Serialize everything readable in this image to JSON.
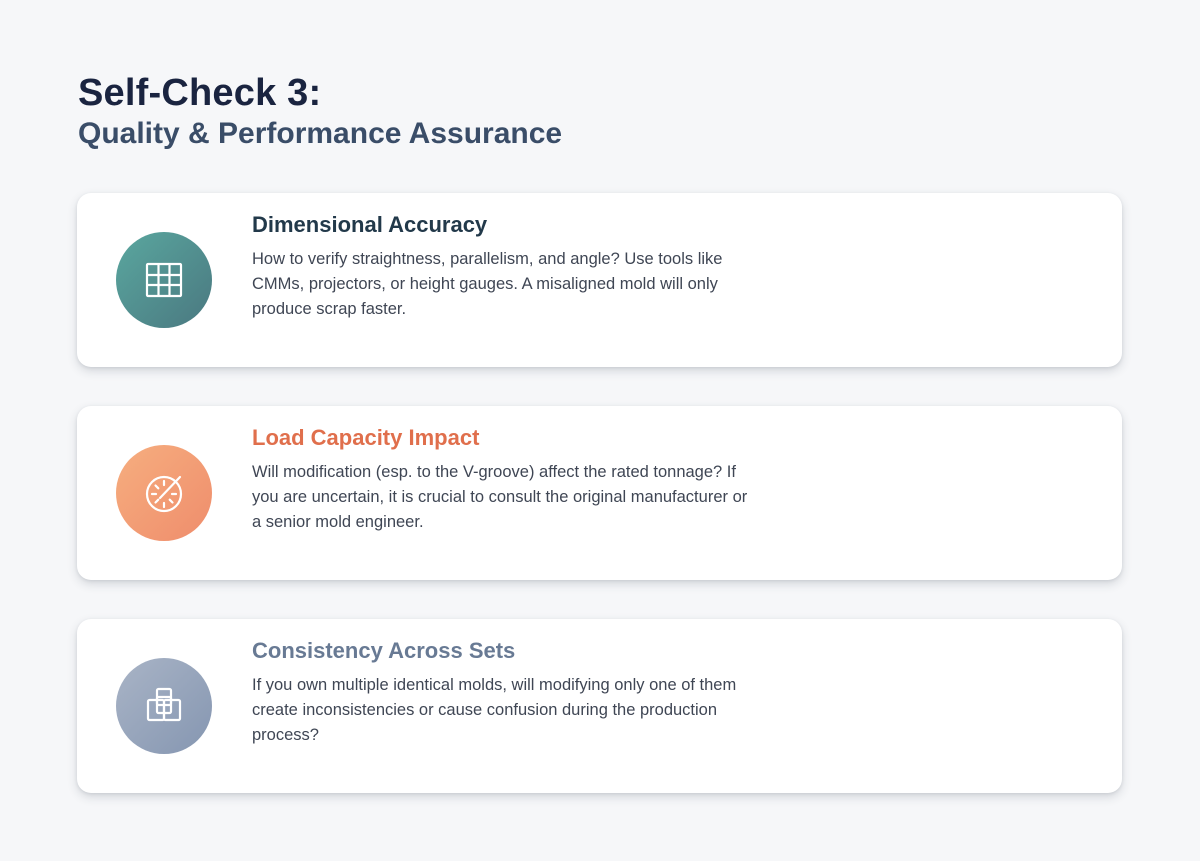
{
  "header": {
    "title": "Self-Check 3:",
    "subtitle": "Quality & Performance Assurance"
  },
  "cards": [
    {
      "title": "Dimensional Accuracy",
      "description": "How to verify straightness, parallelism, and angle? Use tools like CMMs, projectors, or height gauges. A misaligned mold will only produce scrap faster.",
      "icon": "grid-table-icon",
      "title_color": "#22394a",
      "icon_gradient": [
        "#5aa79f",
        "#4a7880"
      ]
    },
    {
      "title": "Load Capacity Impact",
      "description": "Will modification (esp. to the V-groove) affect the rated tonnage? If you are uncertain, it is crucial to consult the original manufacturer or a senior mold engineer.",
      "icon": "gauge-dial-icon",
      "title_color": "#e06f4c",
      "icon_gradient": [
        "#f6ae7f",
        "#ef8d6c"
      ]
    },
    {
      "title": "Consistency Across Sets",
      "description": "If you own multiple identical molds, will modifying only one of them create inconsistencies or cause confusion during the production process?",
      "icon": "stacked-squares-icon",
      "title_color": "#687a94",
      "icon_gradient": [
        "#a9b4c6",
        "#8596b1"
      ]
    }
  ]
}
